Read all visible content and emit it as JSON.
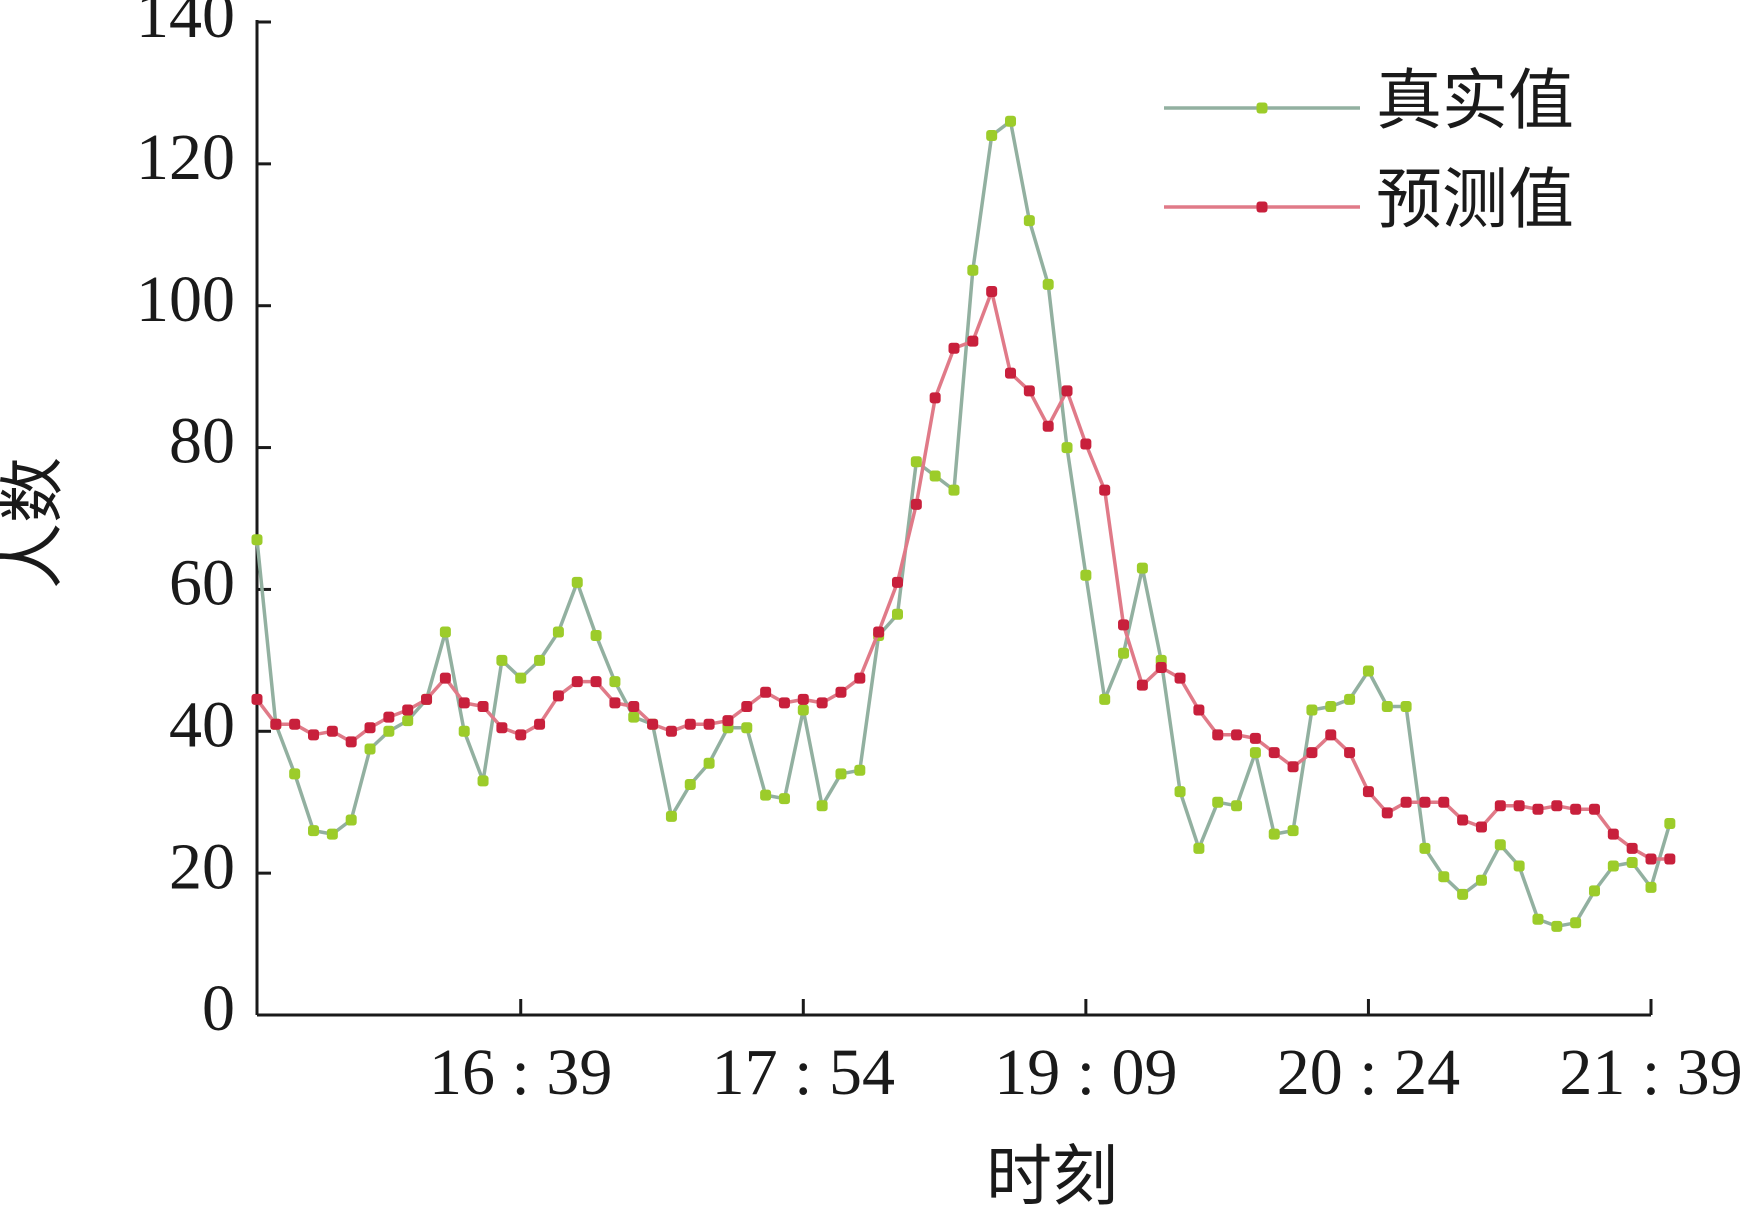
{
  "chart_data": {
    "type": "line",
    "y_label": "人数",
    "x_label": "时刻",
    "categories": [
      null,
      null,
      null,
      null,
      null,
      null,
      null,
      null,
      null,
      null,
      null,
      null,
      null,
      null,
      "16 : 39",
      null,
      null,
      null,
      null,
      null,
      null,
      null,
      null,
      null,
      null,
      null,
      null,
      null,
      null,
      "17 : 54",
      null,
      null,
      null,
      null,
      null,
      null,
      null,
      null,
      null,
      null,
      null,
      null,
      null,
      null,
      "19 : 09",
      null,
      null,
      null,
      null,
      null,
      null,
      null,
      null,
      null,
      null,
      null,
      null,
      null,
      null,
      "20 : 24",
      null,
      null,
      null,
      null,
      null,
      null,
      null,
      null,
      null,
      null,
      null,
      null,
      null,
      null,
      "21 : 39",
      null
    ],
    "series": [
      {
        "name": "真实值",
        "color": "#9ccc2a",
        "line_color": "#92b0a0",
        "values": [
          67,
          41,
          34,
          26,
          25.5,
          27.5,
          37.5,
          40,
          41.5,
          44.5,
          54,
          40,
          33,
          50,
          47.5,
          50,
          54,
          61,
          53.5,
          47,
          42,
          41,
          28,
          32.5,
          35.5,
          40.5,
          40.5,
          31,
          30.5,
          43,
          29.5,
          34,
          34.5,
          53.5,
          56.5,
          78,
          76,
          74,
          105,
          124,
          126,
          112,
          103,
          80,
          62,
          44.5,
          51,
          63,
          50,
          31.5,
          23.5,
          30,
          29.5,
          37,
          25.5,
          26,
          43,
          43.5,
          44.5,
          48.5,
          43.5,
          43.5,
          23.5,
          19.5,
          17,
          19,
          24,
          21,
          13.5,
          12.5,
          13,
          17.5,
          21,
          21.5,
          18,
          27
        ]
      },
      {
        "name": "预测值",
        "color": "#c8203c",
        "line_color": "#e07a88",
        "values": [
          44.5,
          41,
          41,
          39.5,
          40,
          38.5,
          40.5,
          42,
          43,
          44.5,
          47.5,
          44,
          43.5,
          40.5,
          39.5,
          41,
          45,
          47,
          47,
          44,
          43.5,
          41,
          40,
          41,
          41,
          41.5,
          43.5,
          45.5,
          44,
          44.5,
          44,
          45.5,
          47.5,
          54,
          61,
          72,
          87,
          94,
          95,
          102,
          90.5,
          88,
          83,
          88,
          80.5,
          74,
          55,
          46.5,
          49,
          47.5,
          43,
          39.5,
          39.5,
          39,
          37,
          35,
          37,
          39.5,
          37,
          31.5,
          28.5,
          30,
          30,
          30,
          27.5,
          26.5,
          29.5,
          29.5,
          29,
          29.5,
          29,
          29,
          25.5,
          23.5,
          22,
          22
        ]
      }
    ],
    "ylim": [
      0,
      140
    ],
    "yticks": [
      0,
      20,
      40,
      60,
      80,
      100,
      120,
      140
    ],
    "grid": false,
    "legend": "upper right"
  }
}
